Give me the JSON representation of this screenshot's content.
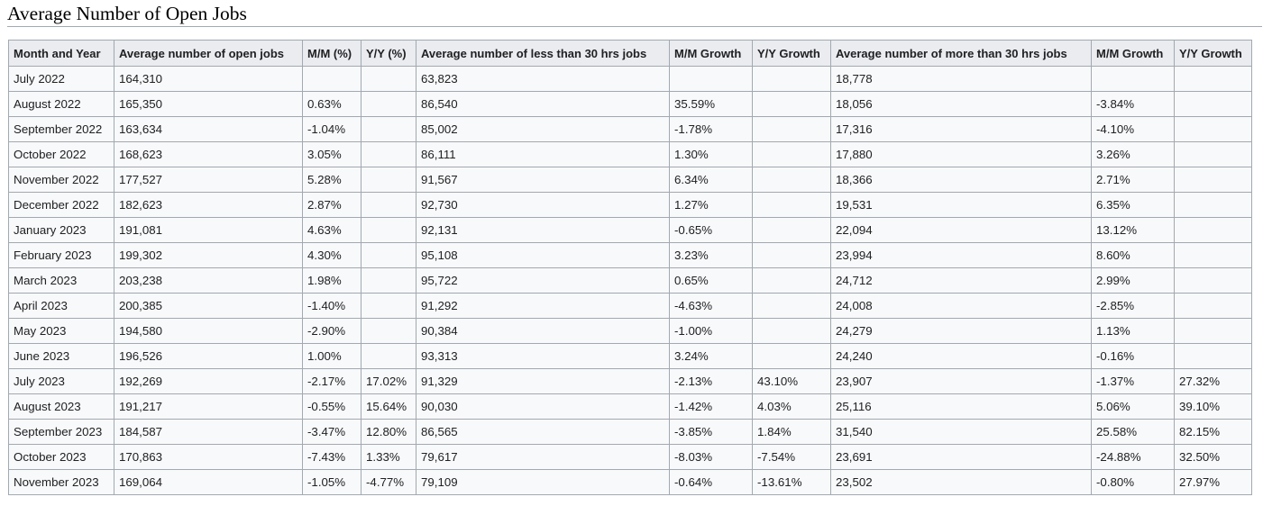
{
  "page": {
    "title": "Average Number of Open Jobs"
  },
  "table": {
    "headers": [
      "Month and Year",
      "Average number of open jobs",
      "M/M (%)",
      "Y/Y (%)",
      "Average number of less than 30 hrs jobs",
      "M/M Growth",
      "Y/Y Growth",
      "Average number of more than 30 hrs jobs",
      "M/M Growth",
      "Y/Y Growth"
    ],
    "rows": [
      [
        "July 2022",
        "164,310",
        "",
        "",
        "63,823",
        "",
        "",
        "18,778",
        "",
        ""
      ],
      [
        "August 2022",
        "165,350",
        "0.63%",
        "",
        "86,540",
        "35.59%",
        "",
        "18,056",
        "-3.84%",
        ""
      ],
      [
        "September 2022",
        "163,634",
        "-1.04%",
        "",
        "85,002",
        "-1.78%",
        "",
        "17,316",
        "-4.10%",
        ""
      ],
      [
        "October 2022",
        "168,623",
        "3.05%",
        "",
        "86,111",
        "1.30%",
        "",
        "17,880",
        "3.26%",
        ""
      ],
      [
        "November 2022",
        "177,527",
        "5.28%",
        "",
        "91,567",
        "6.34%",
        "",
        "18,366",
        "2.71%",
        ""
      ],
      [
        "December 2022",
        "182,623",
        "2.87%",
        "",
        "92,730",
        "1.27%",
        "",
        "19,531",
        "6.35%",
        ""
      ],
      [
        "January 2023",
        "191,081",
        "4.63%",
        "",
        "92,131",
        "-0.65%",
        "",
        "22,094",
        "13.12%",
        ""
      ],
      [
        "February 2023",
        "199,302",
        "4.30%",
        "",
        "95,108",
        "3.23%",
        "",
        "23,994",
        "8.60%",
        ""
      ],
      [
        "March 2023",
        "203,238",
        "1.98%",
        "",
        "95,722",
        "0.65%",
        "",
        "24,712",
        "2.99%",
        ""
      ],
      [
        "April 2023",
        "200,385",
        "-1.40%",
        "",
        "91,292",
        "-4.63%",
        "",
        "24,008",
        "-2.85%",
        ""
      ],
      [
        "May 2023",
        "194,580",
        "-2.90%",
        "",
        "90,384",
        "-1.00%",
        "",
        "24,279",
        "1.13%",
        ""
      ],
      [
        "June 2023",
        "196,526",
        "1.00%",
        "",
        "93,313",
        "3.24%",
        "",
        "24,240",
        "-0.16%",
        ""
      ],
      [
        "July 2023",
        "192,269",
        "-2.17%",
        "17.02%",
        "91,329",
        "-2.13%",
        "43.10%",
        "23,907",
        "-1.37%",
        "27.32%"
      ],
      [
        "August 2023",
        "191,217",
        "-0.55%",
        "15.64%",
        "90,030",
        "-1.42%",
        "4.03%",
        "25,116",
        "5.06%",
        "39.10%"
      ],
      [
        "September 2023",
        "184,587",
        "-3.47%",
        "12.80%",
        "86,565",
        "-3.85%",
        "1.84%",
        "31,540",
        "25.58%",
        "82.15%"
      ],
      [
        "October 2023",
        "170,863",
        "-7.43%",
        "1.33%",
        "79,617",
        "-8.03%",
        "-7.54%",
        "23,691",
        "-24.88%",
        "32.50%"
      ],
      [
        "November 2023",
        "169,064",
        "-1.05%",
        "-4.77%",
        "79,109",
        "-0.64%",
        "-13.61%",
        "23,502",
        "-0.80%",
        "27.97%"
      ]
    ]
  }
}
